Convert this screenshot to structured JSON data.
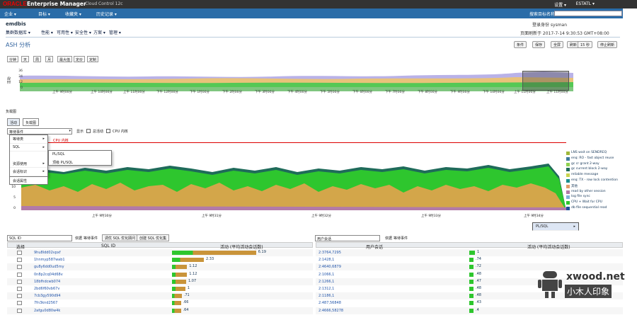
{
  "header": {
    "brand": "ORACLE",
    "product": "Enterprise Manager",
    "edition": "Cloud Control 12c",
    "settings": "设置 ▾",
    "user": "ESTATL ▾"
  },
  "menubar": {
    "items": [
      "企业 ▾",
      "目标 ▾",
      "收藏夹 ▾",
      "历史记录 ▾"
    ],
    "search_label": "搜索目标名称"
  },
  "target": {
    "name": "emdbis",
    "menus": [
      "集群数据库 ▾",
      "性能 ▾",
      "可用性 ▾",
      "安全性 ▾",
      "方案 ▾",
      "管理 ▾"
    ],
    "login": "登录身份 sysman",
    "page_refreshed": "页面刷新于 2017-7-14 9:30:53 GMT+08:00"
  },
  "page": {
    "title": "ASH 分析",
    "buttons": [
      "条件",
      "保存",
      "全屏",
      "刷新",
      "15 秒",
      "停止刷新"
    ]
  },
  "zoom": [
    "分钟",
    "天",
    "周",
    "月",
    "最大值",
    "定价",
    "定制"
  ],
  "overview": {
    "y_ticks": [
      "36",
      "24",
      "12",
      "0"
    ],
    "y_label": "活动",
    "x_ticks": [
      "上午 9时00分",
      "上午 10时00分",
      "上午 11时00分",
      "下午 12时00分",
      "下午 1时00分",
      "下午 2时00分",
      "下午 3时00分",
      "下午 4时00分",
      "下午 5时00分",
      "下午 6时00分",
      "下午 7时00分",
      "下午 8时00分",
      "下午 9时00分",
      "下午 10时00分",
      "上午 11时00分",
      "上午 11时00分"
    ]
  },
  "view": {
    "label": "负载图",
    "show_label": "显示",
    "activity": "活动",
    "tabs": [
      "活动",
      "负载图"
    ],
    "dimension": "等待事件",
    "total": "总活动",
    "cpu": "CPU 内核",
    "cpu_line": "CPU 内核"
  },
  "menu": {
    "items": [
      "等待类",
      "SQL",
      "PL/SQL",
      "资源使用",
      "会话标识",
      "会话属性"
    ],
    "sub": [
      "PL/SQL",
      "顶级 PL/SQL"
    ]
  },
  "ash": {
    "y_ticks": [
      "30",
      "25",
      "20",
      "15",
      "10",
      "5",
      "0"
    ],
    "x_ticks": [
      "上午 9时30分",
      "上午 9时31分",
      "上午 9时32分",
      "上午 9时33分",
      "上午 9时34分"
    ]
  },
  "legend": [
    {
      "name": "LNS wait on SENDREQ",
      "color": "#9fb83a"
    },
    {
      "name": "enq: RO - fast object reuse",
      "color": "#3d7a9c"
    },
    {
      "name": "gc cr grant 2-way",
      "color": "#8fd14f"
    },
    {
      "name": "gc current block 2-way",
      "color": "#1f6b5a"
    },
    {
      "name": "reliable message",
      "color": "#c9d34d"
    },
    {
      "name": "enq: TX - row lock contention",
      "color": "#1a8f8f"
    },
    {
      "name": "其他",
      "color": "#e39c6b"
    },
    {
      "name": "read by other session",
      "color": "#b27aa8"
    },
    {
      "name": "log file sync",
      "color": "#7fb0d8"
    },
    {
      "name": "CPU + Wait for CPU",
      "color": "#2ec62e"
    },
    {
      "name": "db file sequential read",
      "color": "#1b4f9a"
    }
  ],
  "left_table": {
    "dimension": "SQL ID",
    "by": "依据",
    "event": "等待事件",
    "btn1": "调优 SQL 优化顾问",
    "btn2": "创建 SQL 优化集",
    "headers": [
      "选择",
      "SQL ID",
      "活动 (平均活动会话数)"
    ],
    "rows": [
      {
        "id": "9hu8ldd02vpxf",
        "value": "6.19",
        "frac": 0.95
      },
      {
        "id": "1hnmyp587wab1",
        "value": "2.33",
        "frac": 0.36
      },
      {
        "id": "gu8y6dd0ud5my",
        "value": "1.12",
        "frac": 0.17
      },
      {
        "id": "0n8p2cq04d68v",
        "value": "1.12",
        "frac": 0.17
      },
      {
        "id": "18bfhdcwb074",
        "value": "1.07",
        "frac": 0.16
      },
      {
        "id": "2bd6f60vb67v",
        "value": "1",
        "frac": 0.15
      },
      {
        "id": "7cb3gy590d94",
        "value": ".71",
        "frac": 0.11
      },
      {
        "id": "7fn3knd2567",
        "value": ".66",
        "frac": 0.1
      },
      {
        "id": "2afgu0d80w4k",
        "value": ".64",
        "frac": 0.1
      }
    ]
  },
  "right_table": {
    "dimension": "用户会话",
    "by": "依据",
    "event": "等待事件",
    "headers": [
      "用户会话",
      "活动 (平均活动会话数)"
    ],
    "rows": [
      {
        "id": "2:3764,7295",
        "value": "1",
        "frac": 0.04
      },
      {
        "id": "2:1428,1",
        "value": ".74",
        "frac": 0.03
      },
      {
        "id": "2:4640,6879",
        "value": ".72",
        "frac": 0.03
      },
      {
        "id": "2:1066,1",
        "value": ".48",
        "frac": 0.03
      },
      {
        "id": "2:1266,1",
        "value": ".47",
        "frac": 0.03
      },
      {
        "id": "2:1312,1",
        "value": ".48",
        "frac": 0.03
      },
      {
        "id": "2:1186,1",
        "value": ".48",
        "frac": 0.03
      },
      {
        "id": "2:487,56848",
        "value": ".43",
        "frac": 0.03
      },
      {
        "id": "2:4666,58278",
        "value": ".4",
        "frac": 0.03
      }
    ]
  },
  "watermark": {
    "en": "xwood.net",
    "cn": "小木人印象"
  }
}
